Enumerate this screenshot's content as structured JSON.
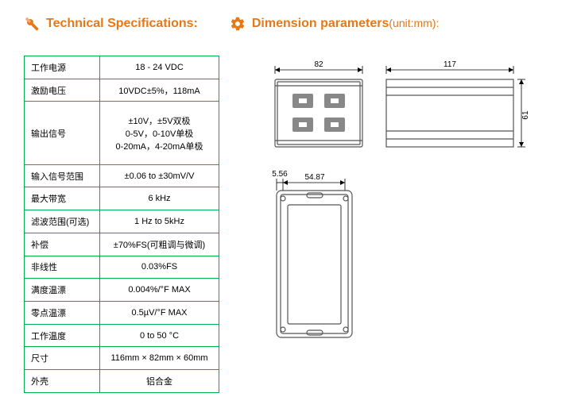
{
  "headings": {
    "tech_spec": "Technical Specifications:",
    "dim_param": "Dimension parameters",
    "dim_unit": "(unit:mm):"
  },
  "spec_rows": [
    {
      "label": "工作电源",
      "value": "18 - 24 VDC"
    },
    {
      "label": "激励电压",
      "value": "10VDC±5%，118mA"
    },
    {
      "label": "输出信号",
      "value": "±10V，±5V双极\n0-5V，0-10V单极\n0-20mA，4-20mA单极"
    },
    {
      "label": "输入信号范围",
      "value": "±0.06 to ±30mV/V"
    },
    {
      "label": "最大带宽",
      "value": "6 kHz"
    },
    {
      "label": "滤波范围(可选)",
      "value": "1 Hz to 5kHz"
    },
    {
      "label": "补偿",
      "value": "±70%FS(可粗调与微调)"
    },
    {
      "label": "非线性",
      "value": "0.03%FS"
    },
    {
      "label": "满度温漂",
      "value": "0.004%/°F MAX"
    },
    {
      "label": "零点温漂",
      "value": "0.5µV/°F MAX"
    },
    {
      "label": "工作温度",
      "value": "0 to 50 °C"
    },
    {
      "label": "尺寸",
      "value": "116mm × 82mm × 60mm"
    },
    {
      "label": "外壳",
      "value": "铝合金"
    }
  ],
  "dimensions": {
    "top_left_w": "82",
    "top_right_w": "117",
    "top_h": "61",
    "bottom_offset": "5.56",
    "bottom_w": "54.87"
  },
  "colors": {
    "accent": "#e67817",
    "table_border": "#00b050",
    "text": "#000000"
  }
}
